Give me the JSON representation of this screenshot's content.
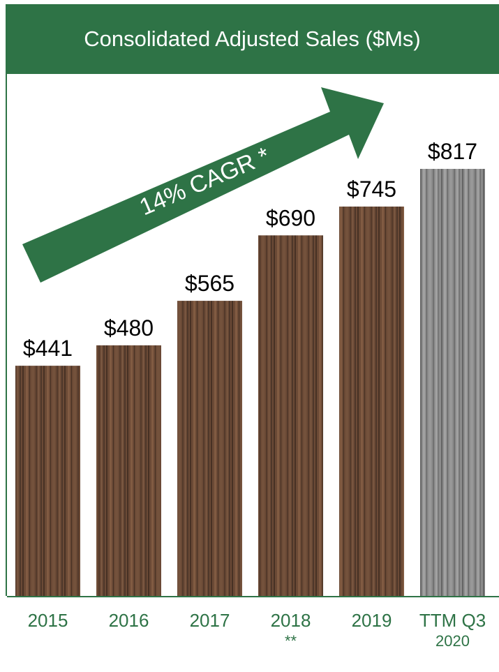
{
  "chart_data": {
    "type": "bar",
    "title": "Consolidated Adjusted Sales ($Ms)",
    "categories": [
      "2015",
      "2016",
      "2017",
      "2018",
      "2019",
      "TTM Q3 2020"
    ],
    "category_labels": [
      {
        "line1": "2015",
        "line2": ""
      },
      {
        "line1": "2016",
        "line2": ""
      },
      {
        "line1": "2017",
        "line2": ""
      },
      {
        "line1": "2018",
        "line2": "**"
      },
      {
        "line1": "2019",
        "line2": ""
      },
      {
        "line1": "TTM Q3",
        "line2": "2020"
      }
    ],
    "values": [
      441,
      480,
      565,
      690,
      745,
      817
    ],
    "data_labels": [
      "$441",
      "$480",
      "$565",
      "$690",
      "$745",
      "$817"
    ],
    "ylim": [
      0,
      817
    ],
    "grid": false,
    "legend": "none",
    "annotation": "14% CAGR *",
    "colors": {
      "header_bg": "#2e7346",
      "header_text": "#ffffff",
      "arrow": "#2e7346",
      "axis": "#2e7346",
      "tick_text": "#2e7346",
      "bar_brown": "#6b4a36",
      "bar_brown_dark": "#3e2a1f",
      "bar_gray": "#8c8c8c",
      "bar_gray_dark": "#5a5a5a"
    }
  }
}
